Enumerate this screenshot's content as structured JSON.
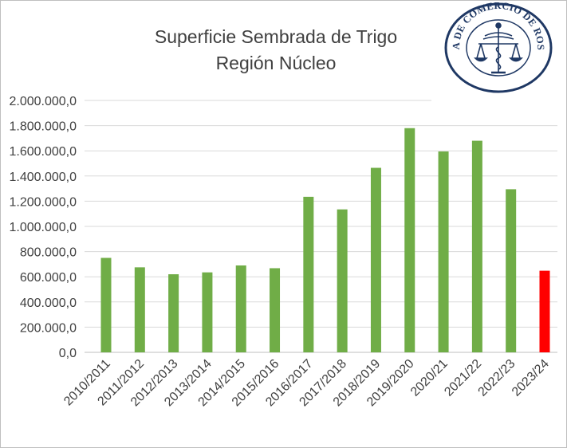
{
  "logo": {
    "text": "BOLSA DE COMERCIO DE ROSARIO",
    "icon": "scales-caduceus-emblem"
  },
  "chart_data": {
    "type": "bar",
    "title": [
      "Superficie  Sembrada  de Trigo",
      "Región Núcleo"
    ],
    "xlabel": "",
    "ylabel": "",
    "ylim": [
      0,
      2000000
    ],
    "y_ticks": [
      0,
      200000,
      400000,
      600000,
      800000,
      1000000,
      1200000,
      1400000,
      1600000,
      1800000,
      2000000
    ],
    "y_tick_labels": [
      "0,0",
      "200.000,0",
      "400.000,0",
      "600.000,0",
      "800.000,0",
      "1.000.000,0",
      "1.200.000,0",
      "1.400.000,0",
      "1.600.000,0",
      "1.800.000,0",
      "2.000.000,0"
    ],
    "categories": [
      "2010/2011",
      "2011/2012",
      "2012/2013",
      "2013/2014",
      "2014/2015",
      "2015/2016",
      "2016/2017",
      "2017/2018",
      "2018/2019",
      "2019/2020",
      "2020/21",
      "2021/22",
      "2022/23",
      "2023/24"
    ],
    "values": [
      750000,
      675000,
      620000,
      635000,
      690000,
      668000,
      1235000,
      1135000,
      1465000,
      1780000,
      1595000,
      1680000,
      1295000,
      648000
    ],
    "colors": [
      "#70ad47",
      "#70ad47",
      "#70ad47",
      "#70ad47",
      "#70ad47",
      "#70ad47",
      "#70ad47",
      "#70ad47",
      "#70ad47",
      "#70ad47",
      "#70ad47",
      "#70ad47",
      "#70ad47",
      "#ff0000"
    ],
    "grid": true,
    "legend": "none"
  }
}
